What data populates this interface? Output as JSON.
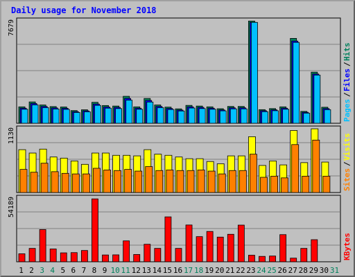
{
  "title": "Daily usage for November 2018",
  "colors": {
    "hits": "#00805c",
    "files": "#0000ff",
    "pages": "#00c0ff",
    "visits": "#ffff00",
    "sites": "#ff8000",
    "kbytes": "#ff0000",
    "weekend_day": "#00805c",
    "weekday": "#000000",
    "background": "#c0c0c0"
  },
  "chart_data": [
    {
      "type": "bar",
      "panel": "hits-files-pages",
      "ymax_label": "7679",
      "ylim": [
        0,
        7679
      ],
      "legend": [
        "Pages",
        "Files",
        "Hits"
      ],
      "categories": [
        "1",
        "2",
        "3",
        "4",
        "5",
        "6",
        "7",
        "8",
        "9",
        "10",
        "11",
        "12",
        "13",
        "14",
        "15",
        "16",
        "17",
        "18",
        "19",
        "20",
        "21",
        "22",
        "23",
        "24",
        "25",
        "26",
        "27",
        "28",
        "29",
        "30",
        "31"
      ],
      "series": [
        {
          "name": "Hits",
          "values": [
            1230,
            1600,
            1370,
            1250,
            1220,
            950,
            1010,
            1570,
            1330,
            1290,
            2020,
            1230,
            1860,
            1370,
            1210,
            1080,
            1340,
            1290,
            1230,
            1090,
            1260,
            1260,
            7660,
            1020,
            1100,
            1230,
            6360,
            890,
            3830,
            1200,
            0
          ]
        },
        {
          "name": "Files",
          "values": [
            1130,
            1480,
            1260,
            1150,
            1120,
            870,
            930,
            1440,
            1220,
            1190,
            1860,
            1130,
            1710,
            1260,
            1110,
            990,
            1230,
            1190,
            1130,
            1000,
            1160,
            1160,
            7560,
            940,
            1010,
            1130,
            6160,
            820,
            3690,
            1100,
            0
          ]
        },
        {
          "name": "Pages",
          "values": [
            1050,
            1380,
            1170,
            1070,
            1040,
            810,
            860,
            1340,
            1130,
            1100,
            1730,
            1050,
            1590,
            1170,
            1030,
            920,
            1140,
            1100,
            1050,
            930,
            1080,
            1080,
            7560,
            870,
            940,
            1050,
            6060,
            760,
            3610,
            1020,
            0
          ]
        }
      ]
    },
    {
      "type": "bar",
      "panel": "visits-sites",
      "ymax_label": "1130",
      "ylim": [
        0,
        1130
      ],
      "legend": [
        "Sites",
        "Visits"
      ],
      "categories": [
        "1",
        "2",
        "3",
        "4",
        "5",
        "6",
        "7",
        "8",
        "9",
        "10",
        "11",
        "12",
        "13",
        "14",
        "15",
        "16",
        "17",
        "18",
        "19",
        "20",
        "21",
        "22",
        "23",
        "24",
        "25",
        "26",
        "27",
        "28",
        "29",
        "30",
        "31"
      ],
      "series": [
        {
          "name": "Visits",
          "values": [
            760,
            700,
            770,
            630,
            610,
            560,
            500,
            700,
            700,
            660,
            660,
            650,
            760,
            680,
            660,
            630,
            600,
            600,
            550,
            510,
            650,
            650,
            990,
            480,
            560,
            490,
            1100,
            530,
            1130,
            540,
            0
          ]
        },
        {
          "name": "Sites",
          "values": [
            410,
            360,
            520,
            370,
            340,
            330,
            330,
            430,
            400,
            390,
            410,
            380,
            460,
            390,
            400,
            390,
            390,
            400,
            380,
            330,
            390,
            390,
            680,
            270,
            290,
            260,
            850,
            290,
            930,
            290,
            0
          ]
        }
      ]
    },
    {
      "type": "bar",
      "panel": "kbytes",
      "ymax_label": "54189",
      "ylim": [
        0,
        54189
      ],
      "legend": [
        "KBytes"
      ],
      "categories": [
        "1",
        "2",
        "3",
        "4",
        "5",
        "6",
        "7",
        "8",
        "9",
        "10",
        "11",
        "12",
        "13",
        "14",
        "15",
        "16",
        "17",
        "18",
        "19",
        "20",
        "21",
        "22",
        "23",
        "24",
        "25",
        "26",
        "27",
        "28",
        "29",
        "30",
        "31"
      ],
      "series": [
        {
          "name": "KBytes",
          "values": [
            6800,
            11400,
            27400,
            10900,
            7600,
            7800,
            9600,
            53500,
            5800,
            5900,
            17800,
            6200,
            14900,
            11400,
            38200,
            11400,
            31300,
            21400,
            25800,
            21000,
            23400,
            31200,
            5600,
            4600,
            4900,
            23100,
            3100,
            11400,
            18800,
            0,
            0
          ]
        }
      ]
    }
  ],
  "x_labels": [
    "1",
    "2",
    "3",
    "4",
    "5",
    "6",
    "7",
    "8",
    "9",
    "10",
    "11",
    "12",
    "13",
    "14",
    "15",
    "16",
    "17",
    "18",
    "19",
    "20",
    "21",
    "22",
    "23",
    "24",
    "25",
    "26",
    "27",
    "28",
    "29",
    "30",
    "31"
  ],
  "weekend_days": [
    3,
    4,
    10,
    11,
    17,
    18,
    24,
    25,
    31
  ]
}
